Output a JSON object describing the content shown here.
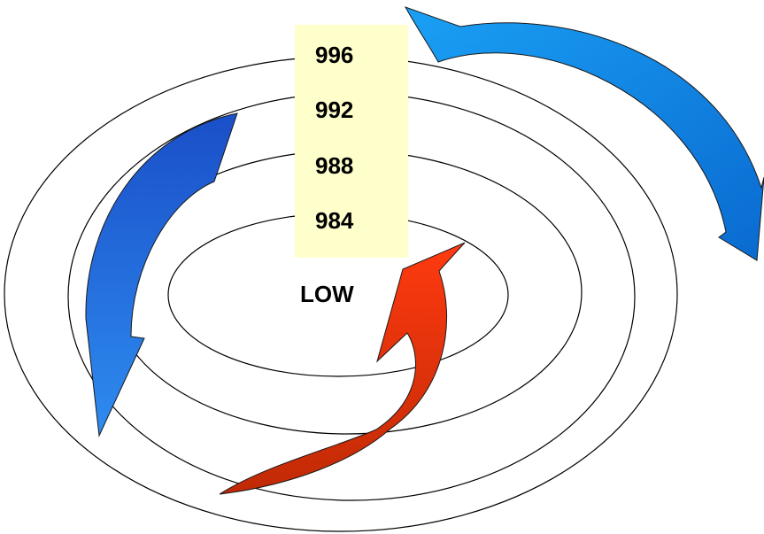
{
  "isobars": [
    {
      "label": "996"
    },
    {
      "label": "992"
    },
    {
      "label": "988"
    },
    {
      "label": "984"
    }
  ],
  "center_label": "LOW",
  "colors": {
    "label_box": "#FFFFCC",
    "line": "#000000",
    "background": "#FFFFFF",
    "arrow_left_top": "#1A4FC8",
    "arrow_left_bottom": "#2E8CF0",
    "arrow_right_top": "#1AA0F5",
    "arrow_right_bottom": "#0A6AD0",
    "arrow_warm_top": "#FF3A10",
    "arrow_warm_bottom": "#C02A05"
  }
}
